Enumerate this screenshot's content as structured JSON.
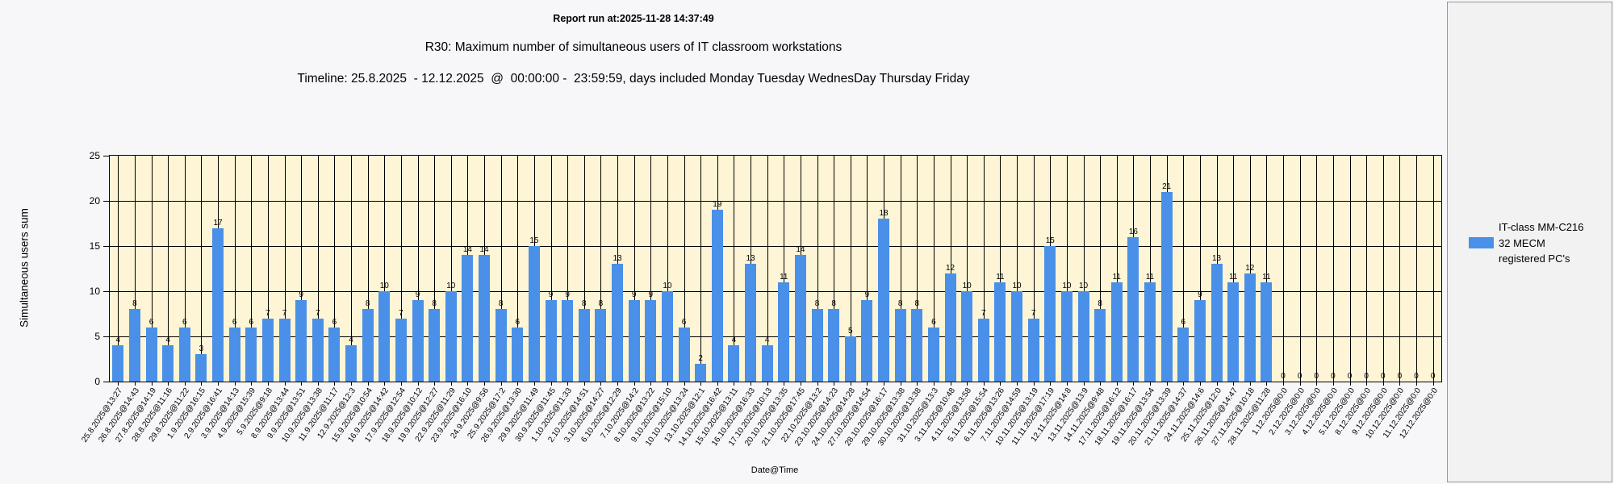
{
  "header": {
    "report_run": "Report run at:2025-11-28 14:37:49",
    "title": "R30: Maximum number of simultaneous users of IT classroom workstations",
    "timeline": "Timeline: 25.8.2025  - 12.12.2025  @  00:00:00 -  23:59:59, days included Monday Tuesday WednesDay Thursday Friday"
  },
  "legend": {
    "line1": "IT-class MM-C216",
    "line2": "32 MECM",
    "line3": "registered PC's",
    "swatch_color": "#4a90e8"
  },
  "chart_data": {
    "type": "bar",
    "title": "R30: Maximum number of simultaneous users of IT classroom workstations",
    "xlabel": "Date@Time",
    "ylabel": "Simultaneous users sum",
    "ylim": [
      0,
      25
    ],
    "yticks": [
      0,
      5,
      10,
      15,
      20,
      25
    ],
    "grid": true,
    "plot_bg": "#fdf5d5",
    "bar_color": "#4a90e8",
    "legend_position": "right",
    "categories": [
      "25.8.2025@13:27",
      "26.8.2025@14:43",
      "27.8.2025@14:19",
      "28.8.2025@11:16",
      "29.8.2025@11:22",
      "1.9.2025@16:15",
      "2.9.2025@16:41",
      "3.9.2025@14:13",
      "4.9.2025@15:39",
      "5.9.2025@9:18",
      "8.9.2025@13:44",
      "9.9.2025@13:51",
      "10.9.2025@13:38",
      "11.9.2025@11:17",
      "12.9.2025@12:3",
      "15.9.2025@10:54",
      "16.9.2025@14:42",
      "17.9.2025@12:54",
      "18.9.2025@10:12",
      "19.9.2025@12:27",
      "22.9.2025@11:29",
      "23.9.2025@16:10",
      "24.9.2025@9:56",
      "25.9.2025@17:2",
      "26.9.2025@13:30",
      "29.9.2025@11:49",
      "30.9.2025@11:45",
      "1.10.2025@11:33",
      "2.10.2025@14:51",
      "3.10.2025@14:27",
      "6.10.2025@12:29",
      "7.10.2025@14:2",
      "8.10.2025@13:22",
      "9.10.2025@15:10",
      "10.10.2025@13:24",
      "13.10.2025@12:1",
      "14.10.2025@16:42",
      "15.10.2025@13:11",
      "16.10.2025@16:33",
      "17.10.2025@10:13",
      "20.10.2025@13:35",
      "21.10.2025@17:45",
      "22.10.2025@13:2",
      "23.10.2025@14:23",
      "24.10.2025@14:28",
      "27.10.2025@14:54",
      "28.10.2025@16:17",
      "29.10.2025@13:38",
      "30.10.2025@13:38",
      "31.10.2025@13:3",
      "3.11.2025@10:48",
      "4.11.2025@13:58",
      "5.11.2025@15:54",
      "6.11.2025@13:26",
      "7.11.2025@14:59",
      "10.11.2025@13:19",
      "11.11.2025@17:19",
      "12.11.2025@14:8",
      "13.11.2025@13:9",
      "14.11.2025@9:48",
      "17.11.2025@16:12",
      "18.11.2025@16:17",
      "19.11.2025@13:54",
      "20.11.2025@13:39",
      "21.11.2025@14:37",
      "24.11.2025@14:6",
      "25.11.2025@12:0",
      "26.11.2025@14:47",
      "27.11.2025@10:18",
      "28.11.2025@11:28",
      "1.12.2025@0:0",
      "2.12.2025@0:0",
      "3.12.2025@0:0",
      "4.12.2025@0:0",
      "5.12.2025@0:0",
      "8.12.2025@0:0",
      "9.12.2025@0:0",
      "10.12.2025@0:0",
      "11.12.2025@0:0",
      "12.12.2025@0:0"
    ],
    "values": [
      4,
      8,
      6,
      4,
      6,
      3,
      17,
      6,
      6,
      7,
      7,
      9,
      7,
      6,
      4,
      8,
      10,
      7,
      9,
      8,
      10,
      14,
      14,
      8,
      6,
      15,
      9,
      9,
      8,
      8,
      13,
      9,
      9,
      10,
      6,
      2,
      19,
      4,
      13,
      4,
      11,
      14,
      8,
      8,
      5,
      9,
      18,
      8,
      8,
      6,
      12,
      10,
      7,
      11,
      10,
      7,
      15,
      10,
      10,
      8,
      11,
      16,
      11,
      21,
      6,
      9,
      13,
      11,
      12,
      11,
      0,
      0,
      0,
      0,
      0,
      0,
      0,
      0,
      0,
      0
    ]
  }
}
